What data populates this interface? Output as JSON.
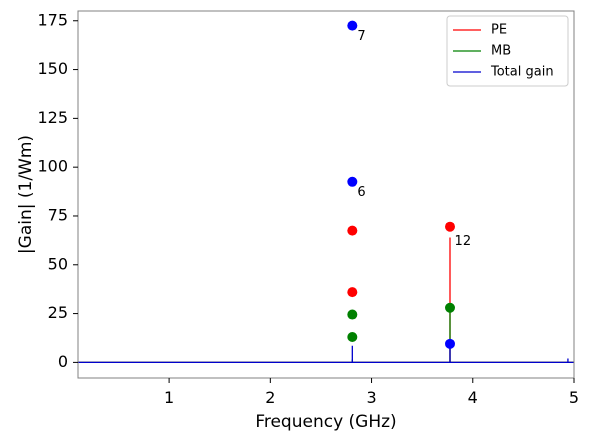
{
  "chart_data": {
    "type": "line",
    "xlabel": "Frequency (GHz)",
    "ylabel": "|Gain| (1/Wm)",
    "xlim": [
      0.1,
      5.0
    ],
    "ylim": [
      -8,
      180
    ],
    "xticks": [
      1,
      2,
      3,
      4,
      5
    ],
    "xtick_labels": [
      "1",
      "2",
      "3",
      "4",
      "5"
    ],
    "yticks": [
      0,
      25,
      50,
      75,
      100,
      125,
      150,
      175
    ],
    "ytick_labels": [
      "0",
      "25",
      "50",
      "75",
      "100",
      "125",
      "150",
      "175"
    ],
    "grid": false,
    "legend_position": "top-right",
    "series": [
      {
        "name": "PE",
        "color": "#ff0000",
        "x": [
          0.1,
          3.775,
          3.775,
          3.775,
          5.0
        ],
        "y": [
          0,
          0,
          64,
          0,
          0
        ]
      },
      {
        "name": "MB",
        "color": "#008000",
        "x": [
          0.1,
          2.81,
          2.81,
          2.81,
          3.775,
          3.775,
          3.775,
          5.0
        ],
        "y": [
          0,
          0,
          1.5,
          0,
          0,
          27,
          0,
          0
        ]
      },
      {
        "name": "Total gain",
        "color": "#0000cd",
        "x": [
          0.1,
          2.81,
          2.81,
          2.81,
          3.775,
          3.775,
          3.775,
          4.94,
          4.94,
          4.94,
          5.0
        ],
        "y": [
          0,
          0,
          8.5,
          0,
          0,
          9,
          0,
          0,
          2,
          0,
          0
        ]
      }
    ],
    "markers": [
      {
        "x": 2.81,
        "y": 172.5,
        "color": "#0000ff"
      },
      {
        "x": 2.81,
        "y": 92.5,
        "color": "#0000ff"
      },
      {
        "x": 2.81,
        "y": 67.5,
        "color": "#ff0000"
      },
      {
        "x": 2.81,
        "y": 36,
        "color": "#ff0000"
      },
      {
        "x": 2.81,
        "y": 24.5,
        "color": "#008000"
      },
      {
        "x": 2.81,
        "y": 13,
        "color": "#008000"
      },
      {
        "x": 3.775,
        "y": 69.5,
        "color": "#ff0000"
      },
      {
        "x": 3.775,
        "y": 28,
        "color": "#008000"
      },
      {
        "x": 3.775,
        "y": 9.5,
        "color": "#0000ff"
      }
    ],
    "annotations": [
      {
        "text": "7",
        "x": 2.86,
        "y": 167
      },
      {
        "text": "6",
        "x": 2.86,
        "y": 87
      },
      {
        "text": "12",
        "x": 3.82,
        "y": 62
      }
    ]
  }
}
